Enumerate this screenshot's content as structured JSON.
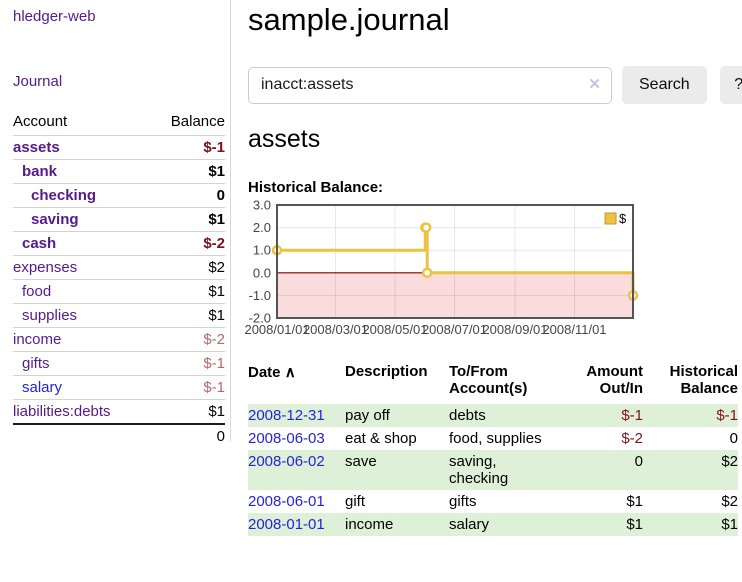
{
  "colors": {
    "link_purple": "#551a8b",
    "link_blue": "#2323dd",
    "neg_strong": "#7f1212",
    "neg_muted": "#b36b6b",
    "stripe_green": "#dff0d8",
    "chart_line": "#edc240",
    "chart_negative_bg": "#fadcdc",
    "chart_zero_line": "#8b0000"
  },
  "sidebar": {
    "brand": "hledger-web",
    "journal_link": "Journal",
    "accounts": {
      "headers": {
        "account": "Account",
        "balance": "Balance"
      },
      "rows": [
        {
          "name": "assets",
          "balance": "$-1",
          "indent": 1,
          "bold": true,
          "balance_style": "neg-strong"
        },
        {
          "name": "bank",
          "balance": "$1",
          "indent": 2,
          "bold": true,
          "balance_style": "pos-strong"
        },
        {
          "name": "checking",
          "balance": "0",
          "indent": 3,
          "bold": true,
          "balance_style": "pos-strong"
        },
        {
          "name": "saving",
          "balance": "$1",
          "indent": 3,
          "bold": true,
          "balance_style": "pos-strong"
        },
        {
          "name": "cash",
          "balance": "$-2",
          "indent": 2,
          "bold": true,
          "balance_style": "neg-strong"
        },
        {
          "name": "expenses",
          "balance": "$2",
          "indent": 1,
          "bold": false,
          "balance_style": "pos"
        },
        {
          "name": "food",
          "balance": "$1",
          "indent": 2,
          "bold": false,
          "balance_style": "pos"
        },
        {
          "name": "supplies",
          "balance": "$1",
          "indent": 2,
          "bold": false,
          "balance_style": "pos"
        },
        {
          "name": "income",
          "balance": "$-2",
          "indent": 1,
          "bold": false,
          "balance_style": "neg-muted"
        },
        {
          "name": "gifts",
          "balance": "$-1",
          "indent": 2,
          "bold": false,
          "balance_style": "neg-muted"
        },
        {
          "name": "salary",
          "balance": "$-1",
          "indent": 2,
          "bold": false,
          "balance_style": "neg-muted",
          "link_color": "blue"
        },
        {
          "name": "liabilities:debts",
          "balance": "$1",
          "indent": 1,
          "bold": false,
          "balance_style": "pos"
        }
      ],
      "total": "0"
    }
  },
  "main": {
    "title": "sample.journal",
    "search": {
      "value": "inacct:assets",
      "clear_icon": "✕",
      "search_button": "Search",
      "help_button": "?"
    },
    "account_heading": "assets",
    "chart_heading": "Historical Balance:",
    "register": {
      "headers": {
        "date": "Date",
        "sort_indicator": "∧",
        "description": "Description",
        "accounts": "To/From Account(s)",
        "amount": "Amount Out/In",
        "balance": "Historical Balance"
      },
      "rows": [
        {
          "date": "2008-12-31",
          "description": "pay off",
          "accounts": "debts",
          "amount": "$-1",
          "amount_neg": true,
          "balance": "$-1",
          "balance_neg": true
        },
        {
          "date": "2008-06-03",
          "description": "eat & shop",
          "accounts": "food, supplies",
          "amount": "$-2",
          "amount_neg": true,
          "balance": "0",
          "balance_neg": false
        },
        {
          "date": "2008-06-02",
          "description": "save",
          "accounts": "saving, checking",
          "amount": "0",
          "amount_neg": false,
          "balance": "$2",
          "balance_neg": false
        },
        {
          "date": "2008-06-01",
          "description": "gift",
          "accounts": "gifts",
          "amount": "$1",
          "amount_neg": false,
          "balance": "$2",
          "balance_neg": false
        },
        {
          "date": "2008-01-01",
          "description": "income",
          "accounts": "salary",
          "amount": "$1",
          "amount_neg": false,
          "balance": "$1",
          "balance_neg": false
        }
      ]
    }
  },
  "chart_data": {
    "type": "line",
    "title": "Historical Balance",
    "steps": true,
    "x_domain": [
      "2008-01-01",
      "2008-12-31"
    ],
    "ylim": [
      -2,
      3
    ],
    "y_ticks": [
      "3.0",
      "2.0",
      "1.0",
      "0.0",
      "-1.0",
      "-2.0"
    ],
    "x_ticks": [
      "2008/01/01",
      "2008/03/01",
      "2008/05/01",
      "2008/07/01",
      "2008/09/01",
      "2008/11/01"
    ],
    "grid": true,
    "negative_region_color": "#fadcdc",
    "zero_line_color": "#8b0000",
    "legend": {
      "label": "$",
      "position": "top-right"
    },
    "series": [
      {
        "name": "$",
        "color": "#edc240",
        "points": [
          {
            "date": "2008-01-01",
            "value": 1
          },
          {
            "date": "2008-06-01",
            "value": 2
          },
          {
            "date": "2008-06-02",
            "value": 2
          },
          {
            "date": "2008-06-03",
            "value": 0
          },
          {
            "date": "2008-12-31",
            "value": -1
          }
        ]
      }
    ]
  }
}
